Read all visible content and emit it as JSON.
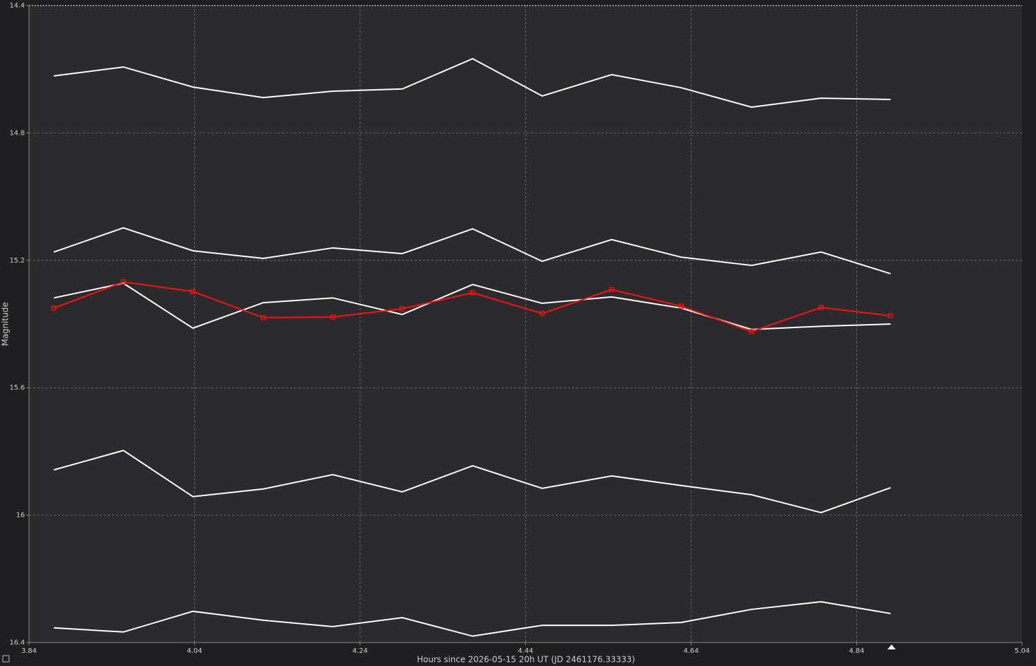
{
  "chart_data": {
    "type": "line",
    "xlabel": "Hours since 2026-05-15 20h UT (JD 2461176.33333)",
    "ylabel": "Magnitude",
    "xlim": [
      3.84,
      5.04
    ],
    "xticks": [
      3.84,
      4.04,
      4.24,
      4.44,
      4.64,
      4.84,
      5.04
    ],
    "ylim": [
      14.4,
      16.4
    ],
    "yticks": [
      14.4,
      14.8,
      15.2,
      15.6,
      16,
      16.4
    ],
    "y_inverted": true,
    "grid": true,
    "x": [
      3.87,
      3.954,
      4.038,
      4.123,
      4.207,
      4.291,
      4.376,
      4.46,
      4.544,
      4.628,
      4.713,
      4.797,
      4.881
    ],
    "series": [
      {
        "color": "#ffffff",
        "markers": false,
        "values": [
          14.621,
          14.593,
          14.656,
          14.689,
          14.669,
          14.662,
          14.567,
          14.684,
          14.617,
          14.658,
          14.719,
          14.691,
          14.695
        ]
      },
      {
        "color": "#ffffff",
        "markers": false,
        "values": [
          15.174,
          15.098,
          15.17,
          15.194,
          15.161,
          15.179,
          15.101,
          15.203,
          15.135,
          15.19,
          15.216,
          15.174,
          15.242
        ]
      },
      {
        "color": "#ffffff",
        "markers": false,
        "values": [
          15.318,
          15.272,
          15.413,
          15.333,
          15.318,
          15.37,
          15.276,
          15.335,
          15.315,
          15.35,
          15.417,
          15.407,
          15.4
        ]
      },
      {
        "color": "#ff1010",
        "markers": true,
        "values": [
          15.35,
          15.268,
          15.298,
          15.38,
          15.378,
          15.352,
          15.302,
          15.367,
          15.292,
          15.344,
          15.424,
          15.348,
          15.374
        ]
      },
      {
        "color": "#ffffff",
        "markers": false,
        "values": [
          15.858,
          15.797,
          15.942,
          15.918,
          15.873,
          15.927,
          15.845,
          15.916,
          15.877,
          15.907,
          15.936,
          15.992,
          15.914
        ]
      },
      {
        "color": "#ffffff",
        "markers": false,
        "values": [
          16.354,
          16.367,
          16.302,
          16.33,
          16.35,
          16.322,
          16.38,
          16.346,
          16.346,
          16.337,
          16.296,
          16.272,
          16.309
        ]
      }
    ]
  }
}
